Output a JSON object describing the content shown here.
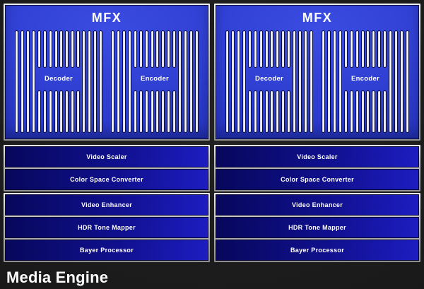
{
  "page": {
    "footer_label": "Media Engine"
  },
  "columns": [
    {
      "mfx": {
        "title": "MFX",
        "decoder_label": "Decoder",
        "encoder_label": "Encoder"
      },
      "pipeline_groups": [
        {
          "rows": [
            {
              "label": "Video Scaler"
            },
            {
              "label": "Color Space Converter"
            }
          ]
        },
        {
          "rows": [
            {
              "label": "Video Enhancer"
            },
            {
              "label": "HDR Tone Mapper"
            },
            {
              "label": "Bayer Processor"
            }
          ]
        }
      ]
    },
    {
      "mfx": {
        "title": "MFX",
        "decoder_label": "Decoder",
        "encoder_label": "Encoder"
      },
      "pipeline_groups": [
        {
          "rows": [
            {
              "label": "Video Scaler"
            },
            {
              "label": "Color Space Converter"
            }
          ]
        },
        {
          "rows": [
            {
              "label": "Video Enhancer"
            },
            {
              "label": "HDR Tone Mapper"
            },
            {
              "label": "Bayer Processor"
            }
          ]
        }
      ]
    }
  ],
  "colors": {
    "background": "#1a1a1a",
    "frame_silver": "#c9c9c9",
    "mfx_blue": "#2c3cce",
    "pin_white": "#f7f8fb",
    "pin_outline": "#0c0f3a",
    "bar_gradient_start": "#07075c",
    "bar_gradient_end": "#1d1dc2",
    "text_white": "#ffffff"
  }
}
